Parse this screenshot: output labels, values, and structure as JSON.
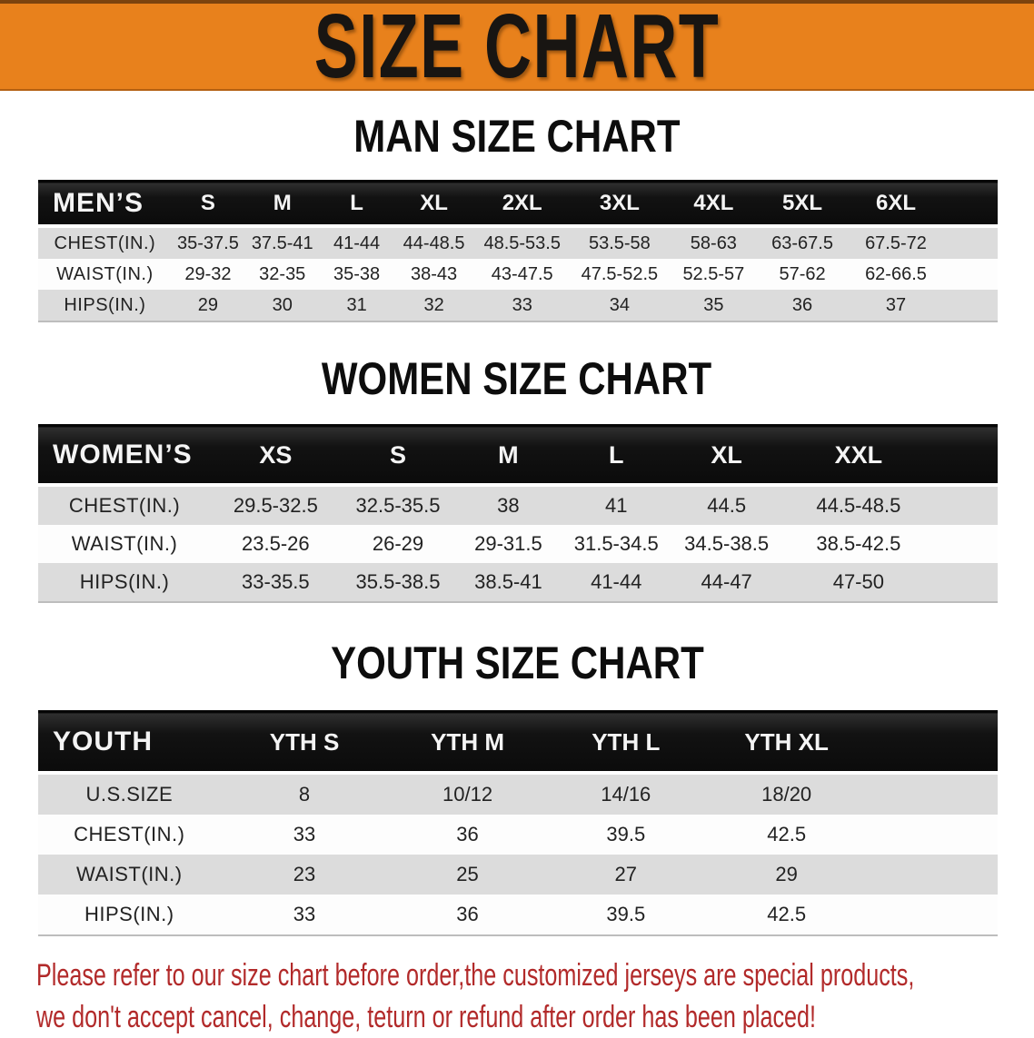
{
  "banner": {
    "title": "SIZE CHART"
  },
  "colors": {
    "banner_bg": "#e8811c",
    "table_header_bg": "#141414",
    "row_stripe_gray": "#dcdcdc",
    "disclaimer_red": "#b22a2a"
  },
  "sections": [
    {
      "heading": "MAN SIZE CHART",
      "table": {
        "header_label": "MEN’S",
        "sizes": [
          "S",
          "M",
          "L",
          "XL",
          "2XL",
          "3XL",
          "4XL",
          "5XL",
          "6XL"
        ],
        "rows": [
          {
            "label": "CHEST(IN.)",
            "values": [
              "35-37.5",
              "37.5-41",
              "41-44",
              "44-48.5",
              "48.5-53.5",
              "53.5-58",
              "58-63",
              "63-67.5",
              "67.5-72"
            ]
          },
          {
            "label": "WAIST(IN.)",
            "values": [
              "29-32",
              "32-35",
              "35-38",
              "38-43",
              "43-47.5",
              "47.5-52.5",
              "52.5-57",
              "57-62",
              "62-66.5"
            ]
          },
          {
            "label": "HIPS(IN.)",
            "values": [
              "29",
              "30",
              "31",
              "32",
              "33",
              "34",
              "35",
              "36",
              "37"
            ]
          }
        ]
      }
    },
    {
      "heading": "WOMEN SIZE CHART",
      "table": {
        "header_label": "WOMEN’S",
        "sizes": [
          "XS",
          "S",
          "M",
          "L",
          "XL",
          "XXL"
        ],
        "rows": [
          {
            "label": "CHEST(IN.)",
            "values": [
              "29.5-32.5",
              "32.5-35.5",
              "38",
              "41",
              "44.5",
              "44.5-48.5"
            ]
          },
          {
            "label": "WAIST(IN.)",
            "values": [
              "23.5-26",
              "26-29",
              "29-31.5",
              "31.5-34.5",
              "34.5-38.5",
              "38.5-42.5"
            ]
          },
          {
            "label": "HIPS(IN.)",
            "values": [
              "33-35.5",
              "35.5-38.5",
              "38.5-41",
              "41-44",
              "44-47",
              "47-50"
            ]
          }
        ]
      }
    },
    {
      "heading": "YOUTH SIZE CHART",
      "table": {
        "header_label": "YOUTH",
        "sizes": [
          "YTH S",
          "YTH M",
          "YTH L",
          "YTH XL"
        ],
        "rows": [
          {
            "label": "U.S.SIZE",
            "values": [
              "8",
              "10/12",
              "14/16",
              "18/20"
            ]
          },
          {
            "label": "CHEST(IN.)",
            "values": [
              "33",
              "36",
              "39.5",
              "42.5"
            ]
          },
          {
            "label": "WAIST(IN.)",
            "values": [
              "23",
              "25",
              "27",
              "29"
            ]
          },
          {
            "label": "HIPS(IN.)",
            "values": [
              "33",
              "36",
              "39.5",
              "42.5"
            ]
          }
        ]
      }
    }
  ],
  "disclaimer": {
    "line1": "Please refer to our size chart before order,the customized jerseys are special products,",
    "line2": "we don't accept cancel, change, teturn or refund after order has been placed!"
  }
}
